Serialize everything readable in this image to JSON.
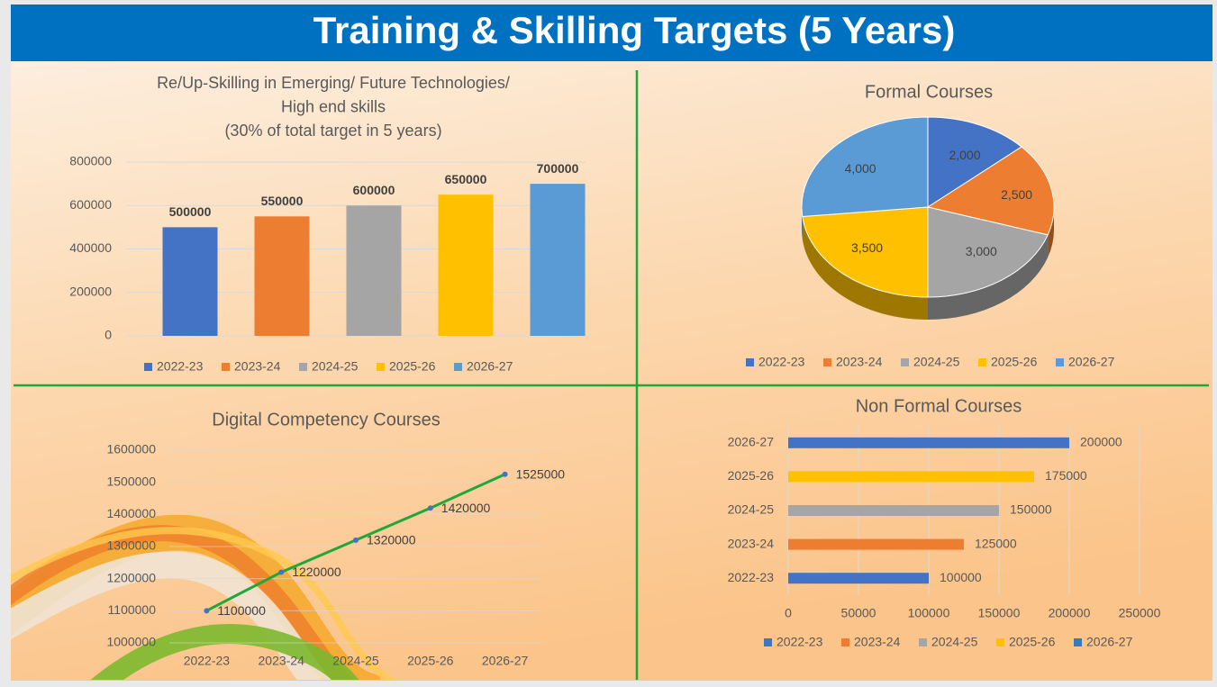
{
  "header": {
    "title": "Training & Skilling Targets (5 Years)"
  },
  "chart_data": [
    {
      "type": "bar",
      "orientation": "vertical",
      "title": [
        "Re/Up-Skilling in Emerging/ Future Technologies/",
        "High end skills",
        "(30% of total target in 5 years)"
      ],
      "categories": [
        "2022-23",
        "2023-24",
        "2024-25",
        "2025-26",
        "2026-27"
      ],
      "values": [
        500000,
        550000,
        600000,
        650000,
        700000
      ],
      "colors": [
        "#4472c4",
        "#ed7d31",
        "#a5a5a5",
        "#ffc000",
        "#5b9bd5"
      ],
      "ylim": [
        0,
        800000
      ],
      "yticks": [
        0,
        200000,
        400000,
        600000,
        800000
      ],
      "grid": true,
      "legend": "bottom"
    },
    {
      "type": "pie",
      "title": "Formal Courses",
      "categories": [
        "2022-23",
        "2023-24",
        "2024-25",
        "2025-26",
        "2026-27"
      ],
      "values": [
        2000,
        2500,
        3000,
        3500,
        4000
      ],
      "value_labels": [
        "2,000",
        "2,500",
        "3,000",
        "3,500",
        "4,000"
      ],
      "colors": [
        "#4472c4",
        "#ed7d31",
        "#a5a5a5",
        "#ffc000",
        "#5b9bd5"
      ],
      "legend": "bottom"
    },
    {
      "type": "line",
      "title": "Digital Competency Courses",
      "categories": [
        "2022-23",
        "2023-24",
        "2024-25",
        "2025-26",
        "2026-27"
      ],
      "values": [
        1100000,
        1220000,
        1320000,
        1420000,
        1525000
      ],
      "color": "#1fa83a",
      "marker_color": "#4472c4",
      "ylim": [
        1000000,
        1600000
      ],
      "yticks": [
        1000000,
        1100000,
        1200000,
        1300000,
        1400000,
        1500000,
        1600000
      ],
      "grid": true
    },
    {
      "type": "bar",
      "orientation": "horizontal",
      "title": "Non Formal Courses",
      "categories": [
        "2022-23",
        "2023-24",
        "2024-25",
        "2025-26",
        "2026-27"
      ],
      "values": [
        100000,
        125000,
        150000,
        175000,
        200000
      ],
      "colors": [
        "#4472c4",
        "#ed7d31",
        "#a5a5a5",
        "#ffc000",
        "#4472c4"
      ],
      "xlim": [
        0,
        250000
      ],
      "xticks": [
        0,
        50000,
        100000,
        150000,
        200000,
        250000
      ],
      "grid": true,
      "legend": "bottom"
    }
  ]
}
